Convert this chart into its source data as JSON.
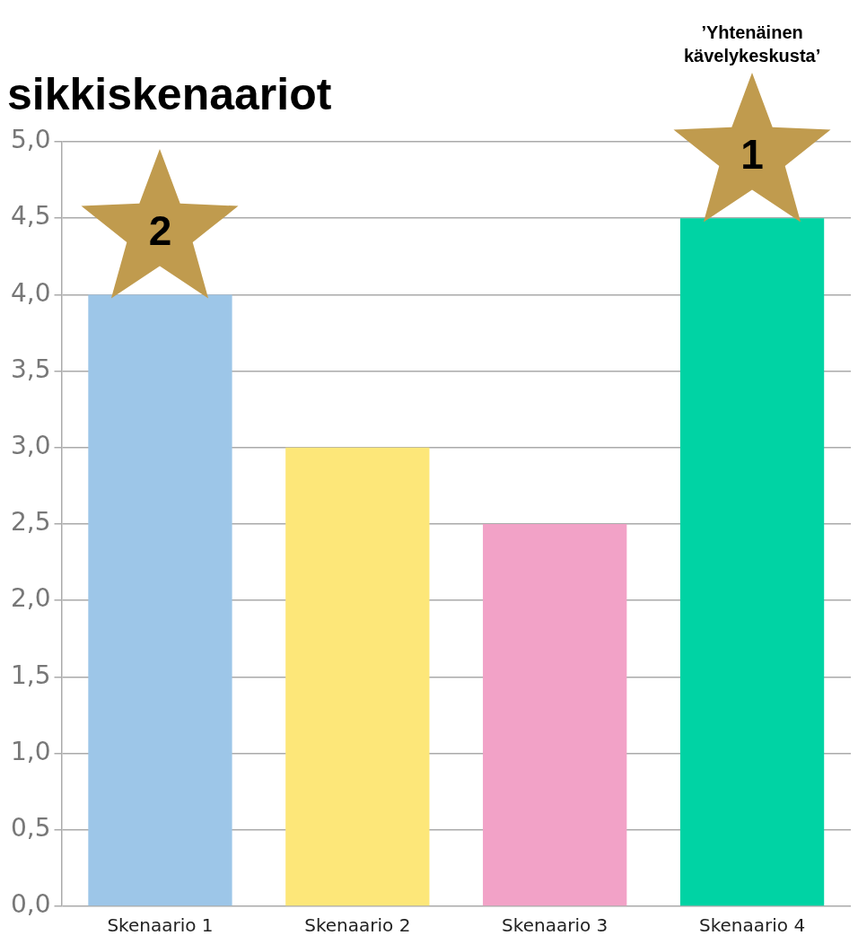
{
  "chart_data": {
    "type": "bar",
    "title": "sikkiskenaariot",
    "categories": [
      "Skenaario 1",
      "Skenaario 2",
      "Skenaario 3",
      "Skenaario 4"
    ],
    "values": [
      4.0,
      3.0,
      2.5,
      4.5
    ],
    "colors": [
      "#9dc6e8",
      "#fde779",
      "#f2a2c7",
      "#00d3a4"
    ],
    "ylim": [
      0,
      5
    ],
    "yticks": [
      {
        "value": 0,
        "label": "0,0"
      },
      {
        "value": 0.5,
        "label": "0,5"
      },
      {
        "value": 1,
        "label": "1,0"
      },
      {
        "value": 1.5,
        "label": "1,5"
      },
      {
        "value": 2,
        "label": "2,0"
      },
      {
        "value": 2.5,
        "label": "2,5"
      },
      {
        "value": 3,
        "label": "3,0"
      },
      {
        "value": 3.5,
        "label": "3,5"
      },
      {
        "value": 4,
        "label": "4,0"
      },
      {
        "value": 4.5,
        "label": "4,5"
      },
      {
        "value": 5,
        "label": "5,0"
      }
    ],
    "grid": "y",
    "legend": false,
    "annotations": [
      "2",
      "1",
      "’Yhtenäinen kävelykeskusta’"
    ]
  }
}
